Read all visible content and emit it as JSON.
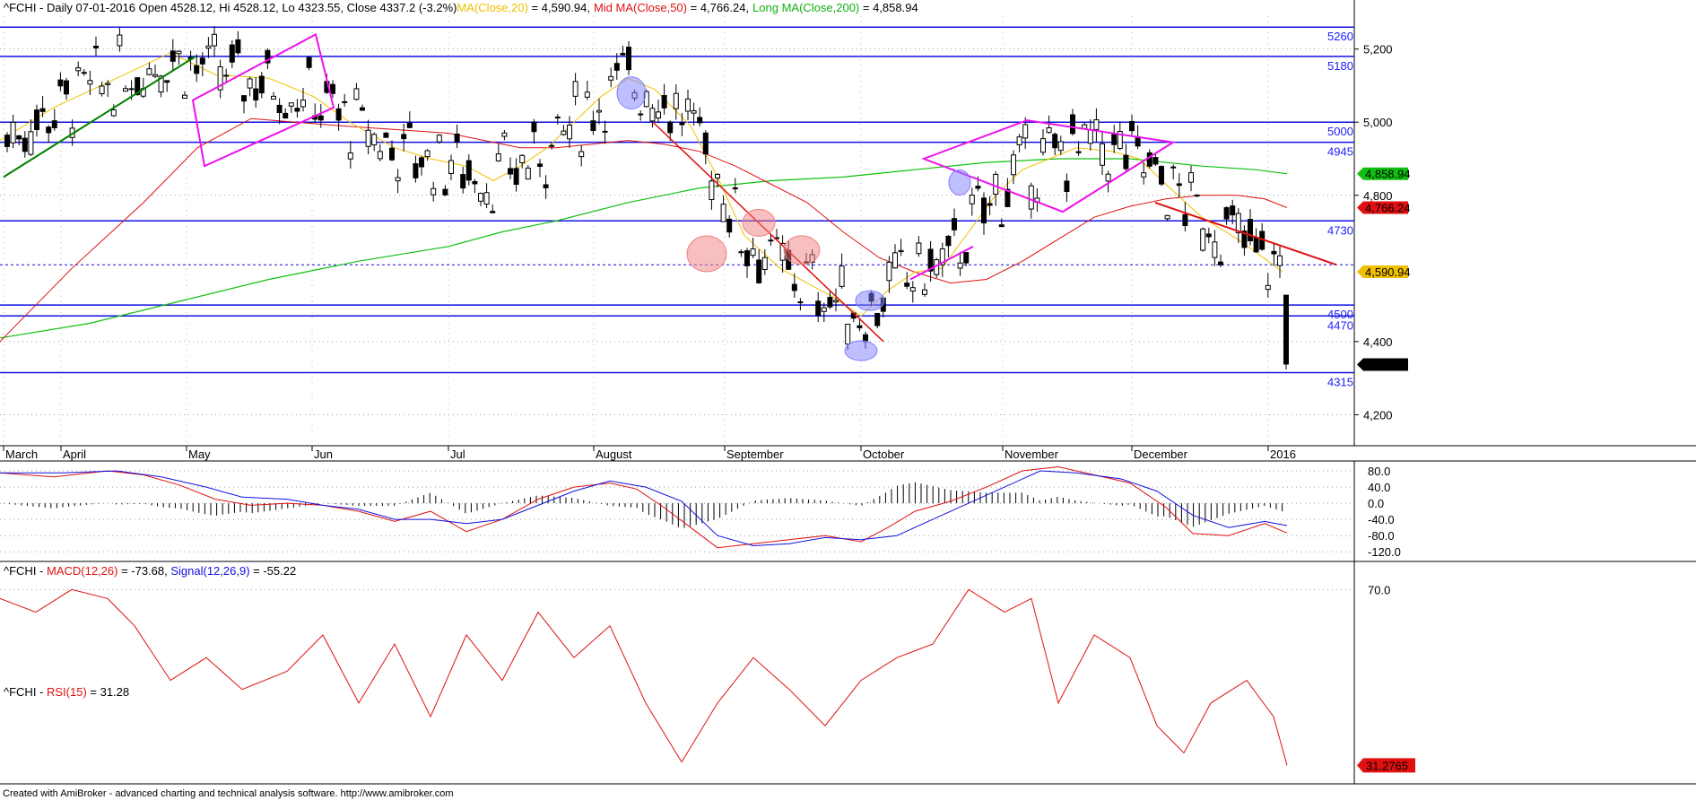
{
  "footer": "Created with AmiBroker - advanced charting and technical analysis software. http://www.amibroker.com",
  "colors": {
    "ma20": "#f0c000",
    "ma50": "#e01010",
    "ma200": "#10c010",
    "level": "#1010e0",
    "trend_green": "#008000",
    "channel": "#ee10ee",
    "macd": "#e01010",
    "signal": "#1010e0",
    "rsi": "#e01010"
  },
  "chart_data": [
    {
      "type": "candlestick",
      "header": {
        "symbol": "^FCHI - Daily 07-01-2016 Open 4528.12, Hi 4528.12, Lo 4323.55, Close 4337.2 (-3.2%)",
        "ma20_label": "MA(Close,20)",
        "ma20_value": " = 4,590.94,",
        "ma50_label": "Mid MA(Close,50)",
        "ma50_value": " = 4,766.24,",
        "ma200_label": "Long MA(Close,200)",
        "ma200_value": " = 4,858.94"
      },
      "ohlc_last": {
        "open": 4528.12,
        "high": 4528.12,
        "low": 4323.55,
        "close": 4337.2,
        "change_pct": -3.2
      },
      "ylim": [
        4120,
        5290
      ],
      "y_ticks": [
        "5,200",
        "5,000",
        "4,800",
        "4,400",
        "4,200"
      ],
      "y_tick_values": [
        5200,
        5000,
        4800,
        4400,
        4200
      ],
      "x_months": [
        "March",
        "April",
        "May",
        "Jun",
        "Jul",
        "August",
        "September",
        "October",
        "November",
        "December",
        "2016"
      ],
      "levels": [
        {
          "label": "5260",
          "value": 5260
        },
        {
          "label": "5180",
          "value": 5180
        },
        {
          "label": "5000",
          "value": 5000
        },
        {
          "label": "4945",
          "value": 4945
        },
        {
          "label": "4730",
          "value": 4730
        },
        {
          "label": "4500",
          "value": 4500
        },
        {
          "label": "4470",
          "value": 4470
        },
        {
          "label": "4315",
          "value": 4315
        }
      ],
      "value_tags": [
        {
          "label": "4,858.94",
          "value": 4858.94,
          "color": "#10c010"
        },
        {
          "label": "4,766.24",
          "value": 4766.24,
          "color": "#e01010"
        },
        {
          "label": "4,590.94",
          "value": 4590.94,
          "color": "#f0c000"
        },
        {
          "label": "4,337.2",
          "value": 4337.2,
          "color": "#000000"
        }
      ],
      "dashed_level": 4610,
      "ma20_points": [
        [
          0,
          4950
        ],
        [
          60,
          5040
        ],
        [
          130,
          5120
        ],
        [
          190,
          5190
        ],
        [
          240,
          5130
        ],
        [
          300,
          5120
        ],
        [
          350,
          5070
        ],
        [
          390,
          5000
        ],
        [
          440,
          4930
        ],
        [
          480,
          4900
        ],
        [
          520,
          4880
        ],
        [
          550,
          4840
        ],
        [
          580,
          4880
        ],
        [
          610,
          4930
        ],
        [
          640,
          5000
        ],
        [
          670,
          5070
        ],
        [
          700,
          5120
        ],
        [
          730,
          5090
        ],
        [
          770,
          4990
        ],
        [
          800,
          4850
        ],
        [
          830,
          4690
        ],
        [
          870,
          4600
        ],
        [
          900,
          4560
        ],
        [
          930,
          4520
        ],
        [
          960,
          4470
        ],
        [
          990,
          4540
        ],
        [
          1020,
          4590
        ],
        [
          1050,
          4600
        ],
        [
          1080,
          4700
        ],
        [
          1110,
          4800
        ],
        [
          1140,
          4870
        ],
        [
          1170,
          4900
        ],
        [
          1200,
          4930
        ],
        [
          1240,
          4920
        ],
        [
          1270,
          4900
        ],
        [
          1300,
          4830
        ],
        [
          1340,
          4740
        ],
        [
          1380,
          4680
        ],
        [
          1430,
          4590.94
        ]
      ],
      "ma50_points": [
        [
          0,
          4400
        ],
        [
          80,
          4600
        ],
        [
          160,
          4780
        ],
        [
          220,
          4930
        ],
        [
          280,
          5010
        ],
        [
          330,
          5000
        ],
        [
          380,
          4990
        ],
        [
          440,
          4980
        ],
        [
          500,
          4970
        ],
        [
          540,
          4950
        ],
        [
          580,
          4930
        ],
        [
          620,
          4930
        ],
        [
          660,
          4940
        ],
        [
          700,
          4950
        ],
        [
          740,
          4940
        ],
        [
          780,
          4920
        ],
        [
          820,
          4880
        ],
        [
          860,
          4830
        ],
        [
          900,
          4780
        ],
        [
          940,
          4700
        ],
        [
          980,
          4630
        ],
        [
          1020,
          4590
        ],
        [
          1060,
          4560
        ],
        [
          1100,
          4570
        ],
        [
          1140,
          4620
        ],
        [
          1180,
          4680
        ],
        [
          1220,
          4740
        ],
        [
          1260,
          4770
        ],
        [
          1300,
          4790
        ],
        [
          1340,
          4800
        ],
        [
          1380,
          4800
        ],
        [
          1410,
          4790
        ],
        [
          1435,
          4766.24
        ]
      ],
      "ma200_points": [
        [
          0,
          4410
        ],
        [
          100,
          4450
        ],
        [
          200,
          4510
        ],
        [
          300,
          4570
        ],
        [
          400,
          4620
        ],
        [
          500,
          4660
        ],
        [
          560,
          4700
        ],
        [
          620,
          4730
        ],
        [
          700,
          4780
        ],
        [
          780,
          4820
        ],
        [
          860,
          4840
        ],
        [
          940,
          4850
        ],
        [
          1020,
          4870
        ],
        [
          1100,
          4890
        ],
        [
          1180,
          4900
        ],
        [
          1260,
          4900
        ],
        [
          1340,
          4880
        ],
        [
          1400,
          4870
        ],
        [
          1435,
          4858.94
        ]
      ],
      "candle_seed": 7
    },
    {
      "type": "line",
      "header": {
        "symbol": "^FCHI - ",
        "macd_label": "MACD(12,26)",
        "macd_value": " = -73.68, ",
        "signal_label": "Signal(12,26,9)",
        "signal_value": " = -55.22"
      },
      "ylim": [
        -135,
        100
      ],
      "y_ticks": [
        "80.0",
        "40.0",
        "0.0",
        "-40.0",
        "-80.0",
        "-120.0"
      ],
      "y_tick_values": [
        80,
        40,
        0,
        -40,
        -80,
        -120
      ],
      "series": [
        {
          "name": "MACD(12,26)",
          "color": "#e01010",
          "points": [
            [
              0,
              75
            ],
            [
              60,
              65
            ],
            [
              120,
              80
            ],
            [
              160,
              70
            ],
            [
              200,
              45
            ],
            [
              240,
              10
            ],
            [
              280,
              -5
            ],
            [
              320,
              0
            ],
            [
              360,
              -5
            ],
            [
              400,
              -20
            ],
            [
              440,
              -45
            ],
            [
              480,
              -20
            ],
            [
              520,
              -70
            ],
            [
              560,
              -40
            ],
            [
              600,
              10
            ],
            [
              640,
              40
            ],
            [
              680,
              50
            ],
            [
              710,
              35
            ],
            [
              740,
              -10
            ],
            [
              770,
              -60
            ],
            [
              800,
              -110
            ],
            [
              840,
              -100
            ],
            [
              880,
              -90
            ],
            [
              920,
              -80
            ],
            [
              960,
              -95
            ],
            [
              990,
              -60
            ],
            [
              1020,
              -20
            ],
            [
              1060,
              5
            ],
            [
              1100,
              40
            ],
            [
              1140,
              80
            ],
            [
              1180,
              90
            ],
            [
              1220,
              70
            ],
            [
              1260,
              50
            ],
            [
              1300,
              -10
            ],
            [
              1330,
              -75
            ],
            [
              1370,
              -80
            ],
            [
              1410,
              -50
            ],
            [
              1435,
              -73.68
            ]
          ]
        },
        {
          "name": "Signal(12,26,9)",
          "color": "#1010e0",
          "points": [
            [
              0,
              75
            ],
            [
              70,
              75
            ],
            [
              130,
              80
            ],
            [
              180,
              65
            ],
            [
              230,
              40
            ],
            [
              270,
              15
            ],
            [
              320,
              10
            ],
            [
              360,
              -5
            ],
            [
              400,
              -15
            ],
            [
              440,
              -40
            ],
            [
              480,
              -40
            ],
            [
              520,
              -50
            ],
            [
              560,
              -40
            ],
            [
              600,
              -5
            ],
            [
              640,
              30
            ],
            [
              680,
              55
            ],
            [
              720,
              40
            ],
            [
              760,
              5
            ],
            [
              800,
              -80
            ],
            [
              840,
              -105
            ],
            [
              880,
              -100
            ],
            [
              920,
              -85
            ],
            [
              960,
              -90
            ],
            [
              1000,
              -80
            ],
            [
              1040,
              -40
            ],
            [
              1080,
              0
            ],
            [
              1120,
              40
            ],
            [
              1160,
              80
            ],
            [
              1200,
              75
            ],
            [
              1250,
              60
            ],
            [
              1290,
              30
            ],
            [
              1330,
              -30
            ],
            [
              1370,
              -60
            ],
            [
              1410,
              -45
            ],
            [
              1435,
              -55.22
            ]
          ]
        }
      ]
    },
    {
      "type": "line",
      "header": {
        "symbol": "^FCHI - ",
        "rsi_label": "RSI(15)",
        "rsi_value": " = 31.28"
      },
      "ylim": [
        28,
        75
      ],
      "y_ticks": [
        "70.0"
      ],
      "y_tick_values": [
        70
      ],
      "value_tag": {
        "label": "31.2765",
        "value": 31.2765
      },
      "series": [
        {
          "name": "RSI(15)",
          "color": "#e01010",
          "points": [
            [
              0,
              68
            ],
            [
              40,
              65
            ],
            [
              80,
              70
            ],
            [
              120,
              68
            ],
            [
              150,
              62
            ],
            [
              190,
              50
            ],
            [
              230,
              55
            ],
            [
              270,
              48
            ],
            [
              320,
              52
            ],
            [
              360,
              60
            ],
            [
              400,
              45
            ],
            [
              440,
              58
            ],
            [
              480,
              42
            ],
            [
              520,
              60
            ],
            [
              560,
              50
            ],
            [
              600,
              65
            ],
            [
              640,
              55
            ],
            [
              680,
              62
            ],
            [
              720,
              45
            ],
            [
              760,
              32
            ],
            [
              800,
              45
            ],
            [
              840,
              55
            ],
            [
              880,
              48
            ],
            [
              920,
              40
            ],
            [
              960,
              50
            ],
            [
              1000,
              55
            ],
            [
              1040,
              58
            ],
            [
              1080,
              70
            ],
            [
              1120,
              65
            ],
            [
              1150,
              68
            ],
            [
              1180,
              45
            ],
            [
              1220,
              60
            ],
            [
              1260,
              55
            ],
            [
              1290,
              40
            ],
            [
              1320,
              34
            ],
            [
              1350,
              45
            ],
            [
              1390,
              50
            ],
            [
              1420,
              42
            ],
            [
              1435,
              31.28
            ]
          ]
        }
      ]
    }
  ]
}
